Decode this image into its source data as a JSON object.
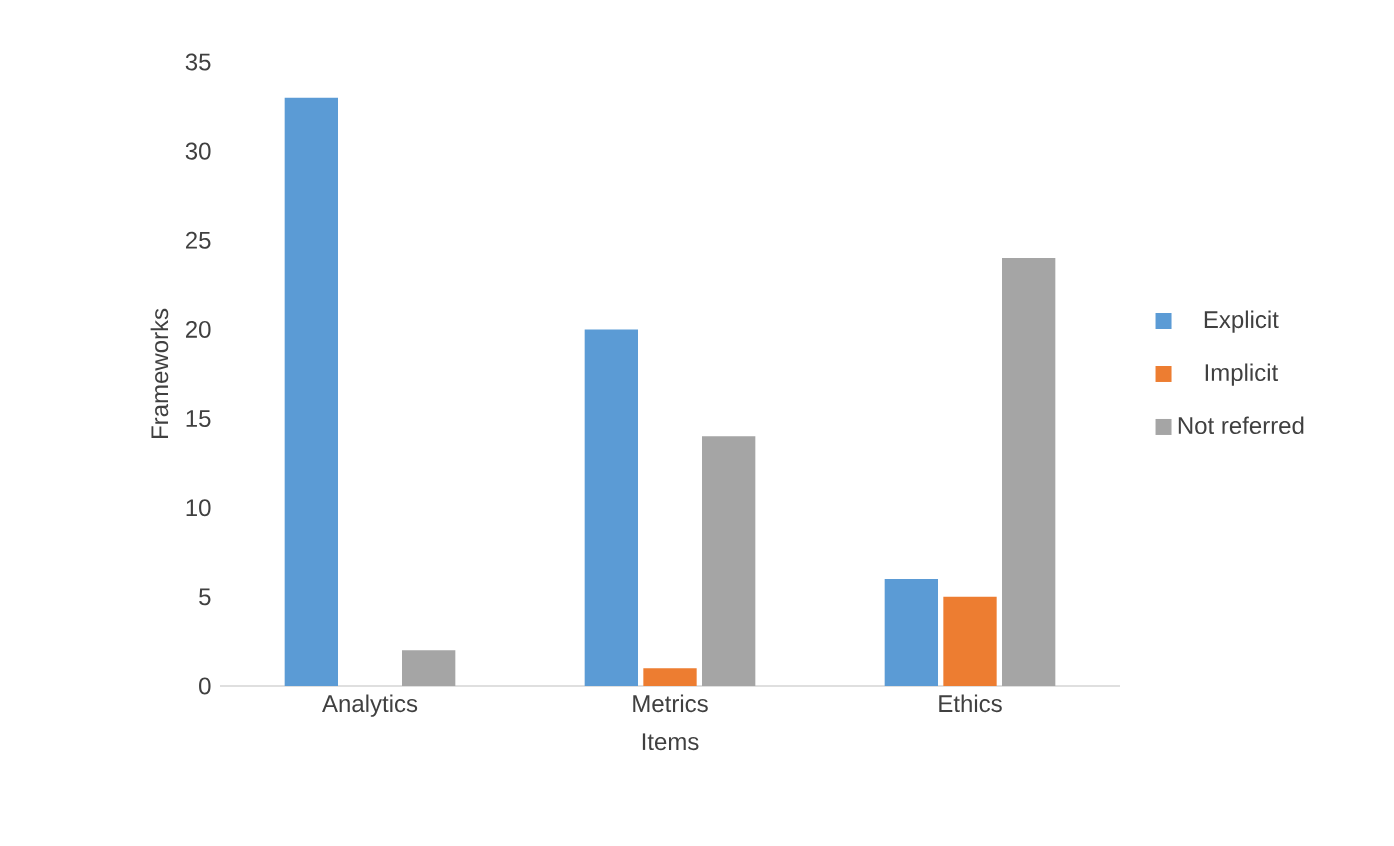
{
  "chart_data": {
    "type": "bar",
    "xlabel": "Items",
    "ylabel": "Frameworks",
    "categories": [
      "Analytics",
      "Metrics",
      "Ethics"
    ],
    "series": [
      {
        "name": "Explicit",
        "color": "#5b9bd5",
        "values": [
          33,
          20,
          6
        ]
      },
      {
        "name": "Implicit",
        "color": "#ed7d31",
        "values": [
          0,
          1,
          5
        ]
      },
      {
        "name": "Not referred",
        "color": "#a5a5a5",
        "values": [
          2,
          14,
          24
        ]
      }
    ],
    "ylim": [
      0,
      35
    ],
    "yticks": [
      0,
      5,
      10,
      15,
      20,
      25,
      30,
      35
    ],
    "grid": false,
    "legend": "right"
  }
}
